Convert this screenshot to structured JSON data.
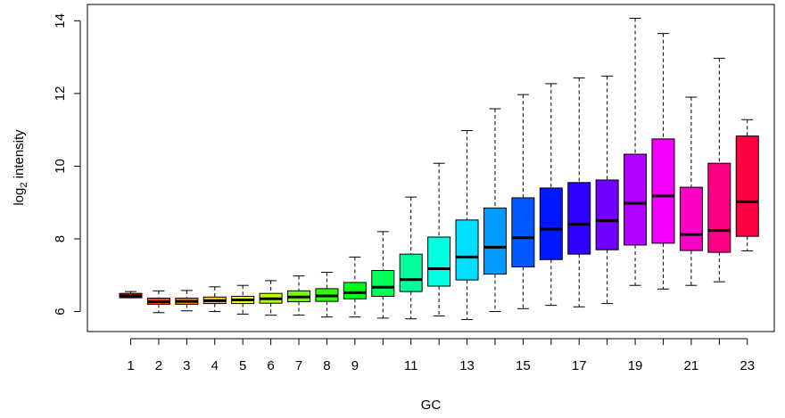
{
  "chart_data": {
    "type": "boxplot",
    "title": "",
    "xlabel": "GC",
    "ylabel": "intensity",
    "ylabel_prefix": "log",
    "ylabel_subscript": "2",
    "ylim": [
      5.45,
      14.45
    ],
    "yticks": [
      6,
      8,
      10,
      12,
      14
    ],
    "categories": [
      1,
      2,
      3,
      4,
      5,
      6,
      7,
      8,
      9,
      10,
      11,
      12,
      13,
      14,
      15,
      16,
      17,
      18,
      19,
      20,
      21,
      22,
      23
    ],
    "xtick_labels": [
      "1",
      "2",
      "3",
      "4",
      "5",
      "6",
      "7",
      "8",
      "9",
      "11",
      "13",
      "15",
      "17",
      "19",
      "21",
      "23"
    ],
    "xtick_positions": [
      1,
      2,
      3,
      4,
      5,
      6,
      7,
      8,
      9,
      11,
      13,
      15,
      17,
      19,
      21,
      23
    ],
    "grid": false,
    "legend": "none",
    "series": [
      {
        "category": 1,
        "whisker_low": 6.38,
        "q1": 6.38,
        "median": 6.43,
        "q3": 6.5,
        "whisker_high": 6.55,
        "color": "#FF0000"
      },
      {
        "category": 2,
        "whisker_low": 5.97,
        "q1": 6.2,
        "median": 6.27,
        "q3": 6.37,
        "whisker_high": 6.57,
        "color": "#FF4200"
      },
      {
        "category": 3,
        "whisker_low": 6.02,
        "q1": 6.2,
        "median": 6.28,
        "q3": 6.37,
        "whisker_high": 6.58,
        "color": "#FF8500"
      },
      {
        "category": 4,
        "whisker_low": 6.0,
        "q1": 6.22,
        "median": 6.3,
        "q3": 6.4,
        "whisker_high": 6.68,
        "color": "#FFC700"
      },
      {
        "category": 5,
        "whisker_low": 5.93,
        "q1": 6.22,
        "median": 6.32,
        "q3": 6.42,
        "whisker_high": 6.72,
        "color": "#F4FF00"
      },
      {
        "category": 6,
        "whisker_low": 5.9,
        "q1": 6.23,
        "median": 6.35,
        "q3": 6.5,
        "whisker_high": 6.85,
        "color": "#B2FF00"
      },
      {
        "category": 7,
        "whisker_low": 5.9,
        "q1": 6.27,
        "median": 6.4,
        "q3": 6.57,
        "whisker_high": 6.98,
        "color": "#6FFF00"
      },
      {
        "category": 8,
        "whisker_low": 5.85,
        "q1": 6.28,
        "median": 6.43,
        "q3": 6.63,
        "whisker_high": 7.08,
        "color": "#2DFF00"
      },
      {
        "category": 9,
        "whisker_low": 5.85,
        "q1": 6.35,
        "median": 6.52,
        "q3": 6.8,
        "whisker_high": 7.5,
        "color": "#00FF16"
      },
      {
        "category": 10,
        "whisker_low": 5.82,
        "q1": 6.42,
        "median": 6.67,
        "q3": 7.13,
        "whisker_high": 8.2,
        "color": "#00FF59"
      },
      {
        "category": 11,
        "whisker_low": 5.8,
        "q1": 6.55,
        "median": 6.88,
        "q3": 7.58,
        "whisker_high": 9.15,
        "color": "#00FF9B"
      },
      {
        "category": 12,
        "whisker_low": 5.88,
        "q1": 6.7,
        "median": 7.18,
        "q3": 8.05,
        "whisker_high": 10.08,
        "color": "#00FFDE"
      },
      {
        "category": 13,
        "whisker_low": 5.78,
        "q1": 6.87,
        "median": 7.5,
        "q3": 8.52,
        "whisker_high": 10.98,
        "color": "#00DEFF"
      },
      {
        "category": 14,
        "whisker_low": 6.0,
        "q1": 7.03,
        "median": 7.77,
        "q3": 8.85,
        "whisker_high": 11.58,
        "color": "#009BFF"
      },
      {
        "category": 15,
        "whisker_low": 6.08,
        "q1": 7.23,
        "median": 8.03,
        "q3": 9.13,
        "whisker_high": 11.97,
        "color": "#0059FF"
      },
      {
        "category": 16,
        "whisker_low": 6.17,
        "q1": 7.43,
        "median": 8.27,
        "q3": 9.4,
        "whisker_high": 12.27,
        "color": "#0016FF"
      },
      {
        "category": 17,
        "whisker_low": 6.13,
        "q1": 7.58,
        "median": 8.4,
        "q3": 9.55,
        "whisker_high": 12.43,
        "color": "#2D00FF"
      },
      {
        "category": 18,
        "whisker_low": 6.22,
        "q1": 7.7,
        "median": 8.5,
        "q3": 9.62,
        "whisker_high": 12.48,
        "color": "#6F00FF"
      },
      {
        "category": 19,
        "whisker_low": 6.72,
        "q1": 7.83,
        "median": 8.98,
        "q3": 10.33,
        "whisker_high": 14.07,
        "color": "#B200FF"
      },
      {
        "category": 20,
        "whisker_low": 6.62,
        "q1": 7.88,
        "median": 9.18,
        "q3": 10.75,
        "whisker_high": 13.65,
        "color": "#F400FF"
      },
      {
        "category": 21,
        "whisker_low": 6.72,
        "q1": 7.68,
        "median": 8.12,
        "q3": 9.42,
        "whisker_high": 11.9,
        "color": "#FF00C7"
      },
      {
        "category": 22,
        "whisker_low": 6.82,
        "q1": 7.63,
        "median": 8.23,
        "q3": 10.08,
        "whisker_high": 12.97,
        "color": "#FF0085"
      },
      {
        "category": 23,
        "whisker_low": 7.67,
        "q1": 8.07,
        "median": 9.02,
        "q3": 10.83,
        "whisker_high": 11.28,
        "color": "#FF0042"
      }
    ]
  }
}
